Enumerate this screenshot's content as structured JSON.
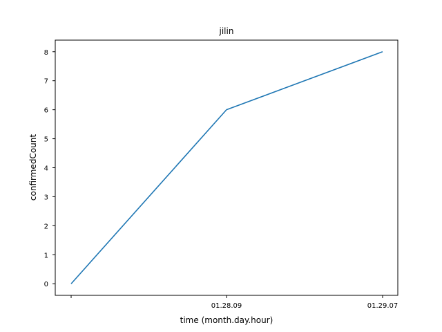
{
  "chart_data": {
    "type": "line",
    "title": "jilin",
    "xlabel": "time (month.day.hour)",
    "ylabel": "confirmedCount",
    "categories": [
      "",
      "01.28.09",
      "01.29.07"
    ],
    "series": [
      {
        "values": [
          0,
          6,
          8
        ],
        "color": "#1f77b4"
      }
    ],
    "ylim": [
      -0.4,
      8.4
    ],
    "yticks": [
      0,
      1,
      2,
      3,
      4,
      5,
      6,
      7,
      8
    ],
    "grid": false,
    "legend": "none"
  }
}
